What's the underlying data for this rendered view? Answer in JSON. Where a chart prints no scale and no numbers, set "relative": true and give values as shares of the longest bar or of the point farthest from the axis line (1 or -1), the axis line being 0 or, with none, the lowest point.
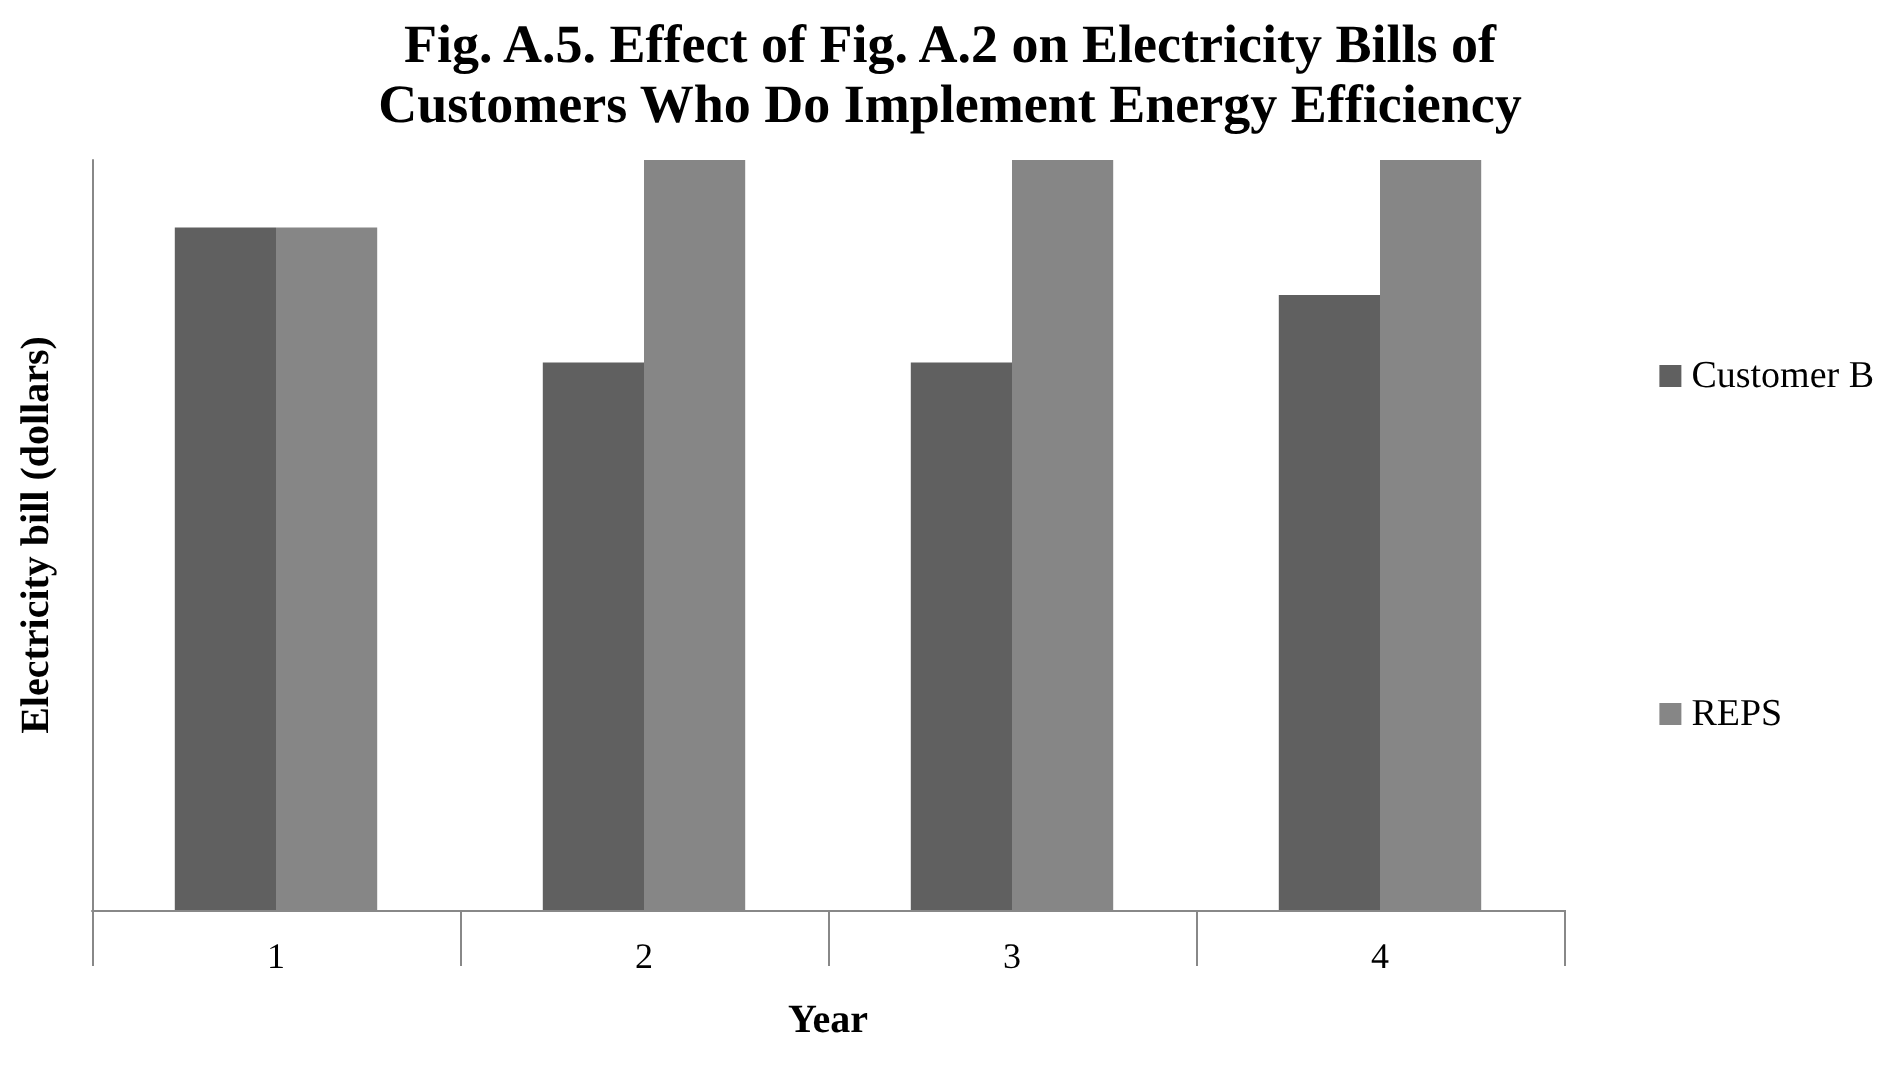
{
  "chart_data": {
    "type": "bar",
    "title": "Fig. A.5. Effect of Fig. A.2 on Electricity Bills of\nCustomers Who Do Implement Energy Efficiency",
    "xlabel": "Year",
    "ylabel": "Electricity bill (dollars)",
    "categories": [
      "1",
      "2",
      "3",
      "4"
    ],
    "relative": true,
    "legend": "right",
    "grid": false,
    "series": [
      {
        "name": "Customer B",
        "color": "#606060",
        "values": [
          0.91,
          0.73,
          0.73,
          0.82
        ]
      },
      {
        "name": "REPS",
        "color": "#868686",
        "values": [
          0.91,
          1,
          1,
          1
        ]
      }
    ]
  }
}
